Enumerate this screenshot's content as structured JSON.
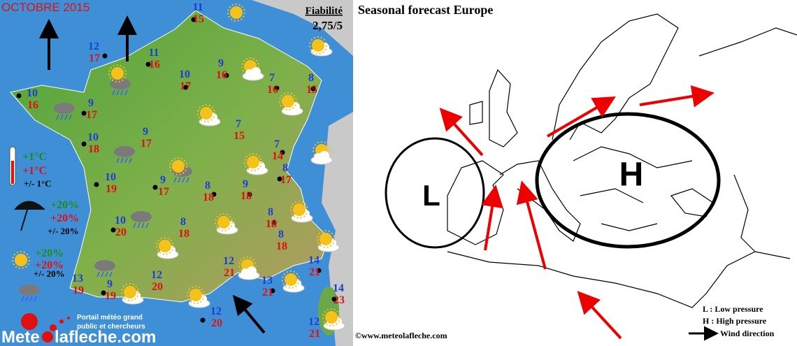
{
  "header": {
    "title": "OCTOBRE 2015",
    "reliability_label": "Fiabilité",
    "reliability_value": "2,75/5"
  },
  "legend": {
    "temperature": [
      "+1°C",
      "+1°C",
      "+/- 1°C"
    ],
    "rain": [
      "+20%",
      "+20%",
      "+/- 20%"
    ],
    "sun": [
      "+20%",
      "+20%",
      "+/- 20%"
    ]
  },
  "cities": [
    {
      "min": 11,
      "max": 15
    },
    {
      "min": 12,
      "max": 17
    },
    {
      "min": 11,
      "max": 16
    },
    {
      "min": 10,
      "max": 17
    },
    {
      "min": 9,
      "max": 16
    },
    {
      "min": 7,
      "max": 16
    },
    {
      "min": 8,
      "max": 15
    },
    {
      "min": 10,
      "max": 16
    },
    {
      "min": 9,
      "max": 17
    },
    {
      "min": 7,
      "max": 15
    },
    {
      "min": 9,
      "max": 17
    },
    {
      "min": 10,
      "max": 18
    },
    {
      "min": 7,
      "max": 14
    },
    {
      "min": 8,
      "max": 17
    },
    {
      "min": 10,
      "max": 19
    },
    {
      "min": 9,
      "max": 17
    },
    {
      "min": 8,
      "max": 18
    },
    {
      "min": 9,
      "max": 18
    },
    {
      "min": 10,
      "max": 20
    },
    {
      "min": 8,
      "max": 18
    },
    {
      "min": 8,
      "max": 18
    },
    {
      "min": 8,
      "max": 18
    },
    {
      "min": 12,
      "max": 21
    },
    {
      "min": 12,
      "max": 20
    },
    {
      "min": 14,
      "max": 21
    },
    {
      "min": 13,
      "max": 19
    },
    {
      "min": 9,
      "max": 19
    },
    {
      "min": 13,
      "max": 21
    },
    {
      "min": 14,
      "max": 23
    },
    {
      "min": 12,
      "max": 20
    },
    {
      "min": 12,
      "max": 21
    }
  ],
  "logo": {
    "brand_start": "Mete",
    "brand_end": "lafleche.com",
    "tagline": [
      "Portail météo grand",
      "public et chercheurs"
    ]
  },
  "europe": {
    "title": "Seasonal  forecast Europe",
    "low": "L",
    "high": "H",
    "legend": [
      "L : Low pressure",
      "H : High pressure",
      "Wind direction"
    ],
    "credit": "©www.meteolafleche.com"
  }
}
